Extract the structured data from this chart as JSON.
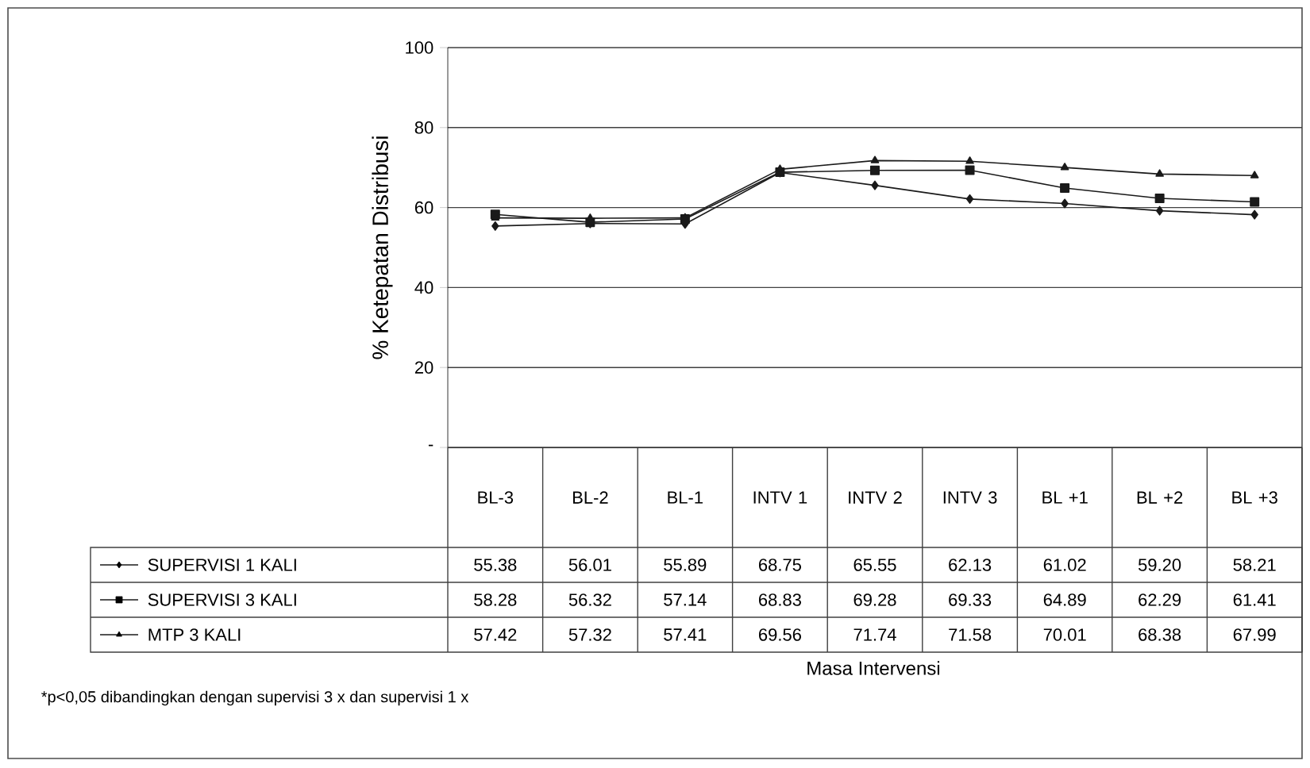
{
  "chart_data": {
    "type": "line",
    "ylabel": "% Ketepatan Distribusi",
    "categories": [
      "BL-3",
      "BL-2",
      "BL-1",
      "INTV 1",
      "INTV 2",
      "INTV 3",
      "BL +1",
      "BL +2",
      "BL +3"
    ],
    "series": [
      {
        "name": "SUPERVISI 1 KALI",
        "color": "#1a1a1a",
        "marker": "diamond",
        "values": [
          55.38,
          56.01,
          55.89,
          68.75,
          65.55,
          62.13,
          61.02,
          59.2,
          58.21
        ],
        "value_labels": [
          "55.38",
          "56.01",
          "55.89",
          "68.75",
          "65.55",
          "62.13",
          "61.02",
          "59.20",
          "58.21"
        ]
      },
      {
        "name": "SUPERVISI 3 KALI",
        "color": "#1a1a1a",
        "marker": "square",
        "values": [
          58.28,
          56.32,
          57.14,
          68.83,
          69.28,
          69.33,
          64.89,
          62.29,
          61.41
        ],
        "value_labels": [
          "58.28",
          "56.32",
          "57.14",
          "68.83",
          "69.28",
          "69.33",
          "64.89",
          "62.29",
          "61.41"
        ]
      },
      {
        "name": "MTP 3 KALI",
        "color": "#1a1a1a",
        "marker": "triangle",
        "values": [
          57.42,
          57.32,
          57.41,
          69.56,
          71.74,
          71.58,
          70.01,
          68.38,
          67.99
        ],
        "value_labels": [
          "57.42",
          "57.32",
          "57.41",
          "69.56",
          "71.74",
          "71.58",
          "70.01",
          "68.38",
          "67.99"
        ]
      }
    ],
    "ylim": [
      0,
      100
    ],
    "yticks": [
      {
        "value": 0,
        "label": "-"
      },
      20,
      40,
      60,
      80,
      100
    ],
    "grid": "y",
    "legend": "bottom",
    "annotations": [
      "Masa Intervensi",
      "*p<0,05 dibandingkan dengan supervisi 3 x dan supervisi 1 x"
    ]
  }
}
